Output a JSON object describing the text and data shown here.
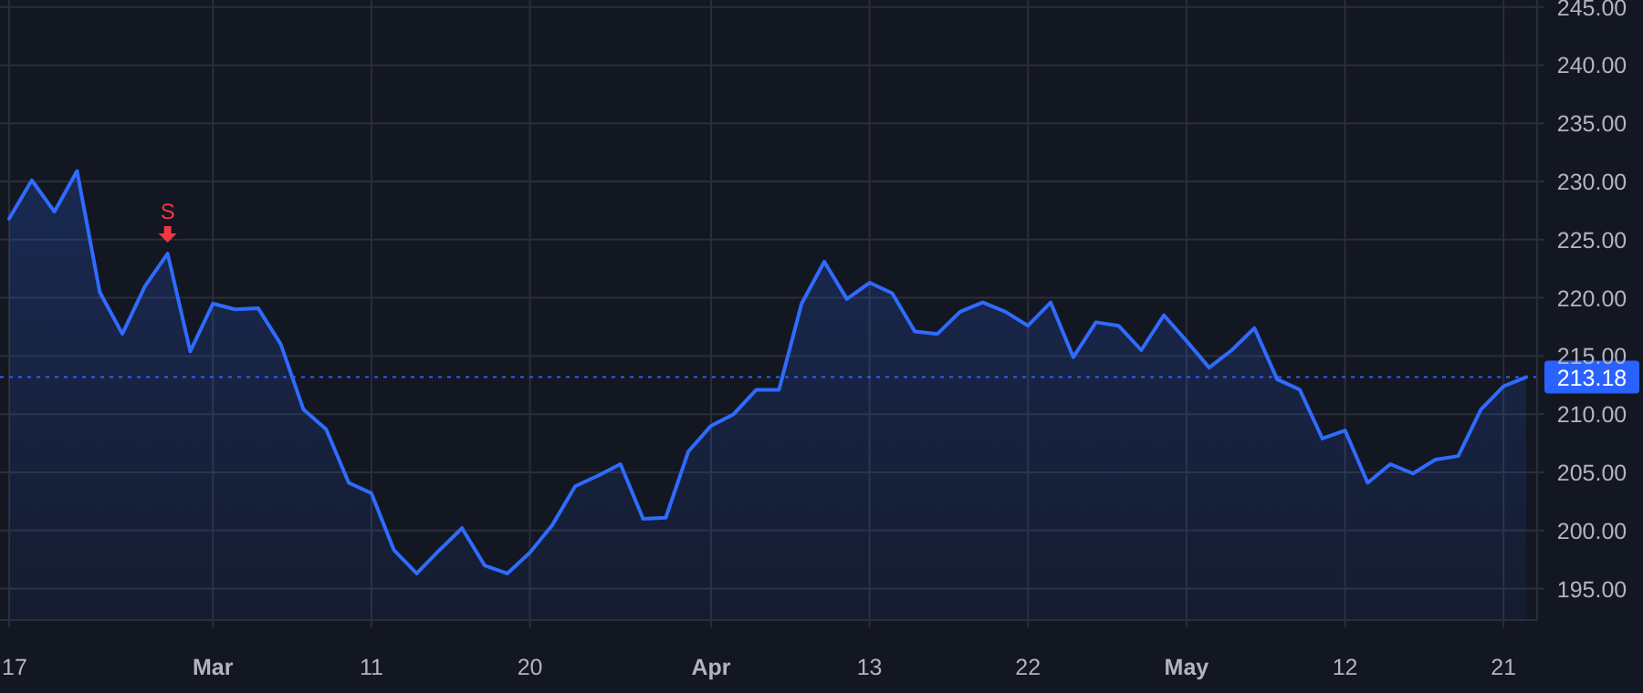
{
  "chart_data": {
    "type": "area",
    "categories": [
      "17",
      null,
      null,
      null,
      null,
      null,
      null,
      null,
      null,
      "Mar",
      null,
      null,
      null,
      null,
      null,
      null,
      "11",
      null,
      null,
      null,
      null,
      null,
      null,
      "20",
      null,
      null,
      null,
      null,
      null,
      null,
      null,
      "Apr",
      null,
      null,
      null,
      null,
      null,
      null,
      "13",
      null,
      null,
      null,
      null,
      null,
      null,
      "22",
      null,
      null,
      null,
      null,
      null,
      null,
      "May",
      null,
      null,
      null,
      null,
      null,
      null,
      "12",
      null,
      null,
      null,
      null,
      null,
      null,
      "21",
      null
    ],
    "series": [
      {
        "color": "#2f6bff",
        "values": [
          226.8,
          230.1,
          227.4,
          230.9,
          220.5,
          216.9,
          221.0,
          223.8,
          215.4,
          219.5,
          219.0,
          219.1,
          216.0,
          210.4,
          208.7,
          204.1,
          203.2,
          198.3,
          196.3,
          198.3,
          200.2,
          197.0,
          196.3,
          198.1,
          200.5,
          203.8,
          204.7,
          205.7,
          201.0,
          201.1,
          206.8,
          209.0,
          210.0,
          212.1,
          212.1,
          219.5,
          223.1,
          219.9,
          221.3,
          220.4,
          217.1,
          216.9,
          218.8,
          219.6,
          218.8,
          217.6,
          219.6,
          214.9,
          217.9,
          217.6,
          215.5,
          218.5,
          216.3,
          214.0,
          215.5,
          217.4,
          213.0,
          212.1,
          207.9,
          208.6,
          204.1,
          205.7,
          204.9,
          206.1,
          206.4,
          210.4,
          212.4,
          213.18
        ]
      }
    ],
    "ylim": [
      192.3,
      245.6
    ],
    "yticks": [
      {
        "value": 195,
        "label": "195.00"
      },
      {
        "value": 200,
        "label": "200.00"
      },
      {
        "value": 205,
        "label": "205.00"
      },
      {
        "value": 210,
        "label": "210.00"
      },
      {
        "value": 215,
        "label": "215.00"
      },
      {
        "value": 220,
        "label": "220.00"
      },
      {
        "value": 225,
        "label": "225.00"
      },
      {
        "value": 230,
        "label": "230.00"
      },
      {
        "value": 235,
        "label": "235.00"
      },
      {
        "value": 240,
        "label": "240.00"
      },
      {
        "value": 245,
        "label": "245.00"
      }
    ],
    "grid": true,
    "ref_lines": [
      {
        "axis": "y",
        "value": 213.18,
        "label": "213.18",
        "color": "#2962ff",
        "line_style": "dotted"
      }
    ],
    "annotations": [
      {
        "text": "S",
        "y": 223.8
      }
    ]
  }
}
